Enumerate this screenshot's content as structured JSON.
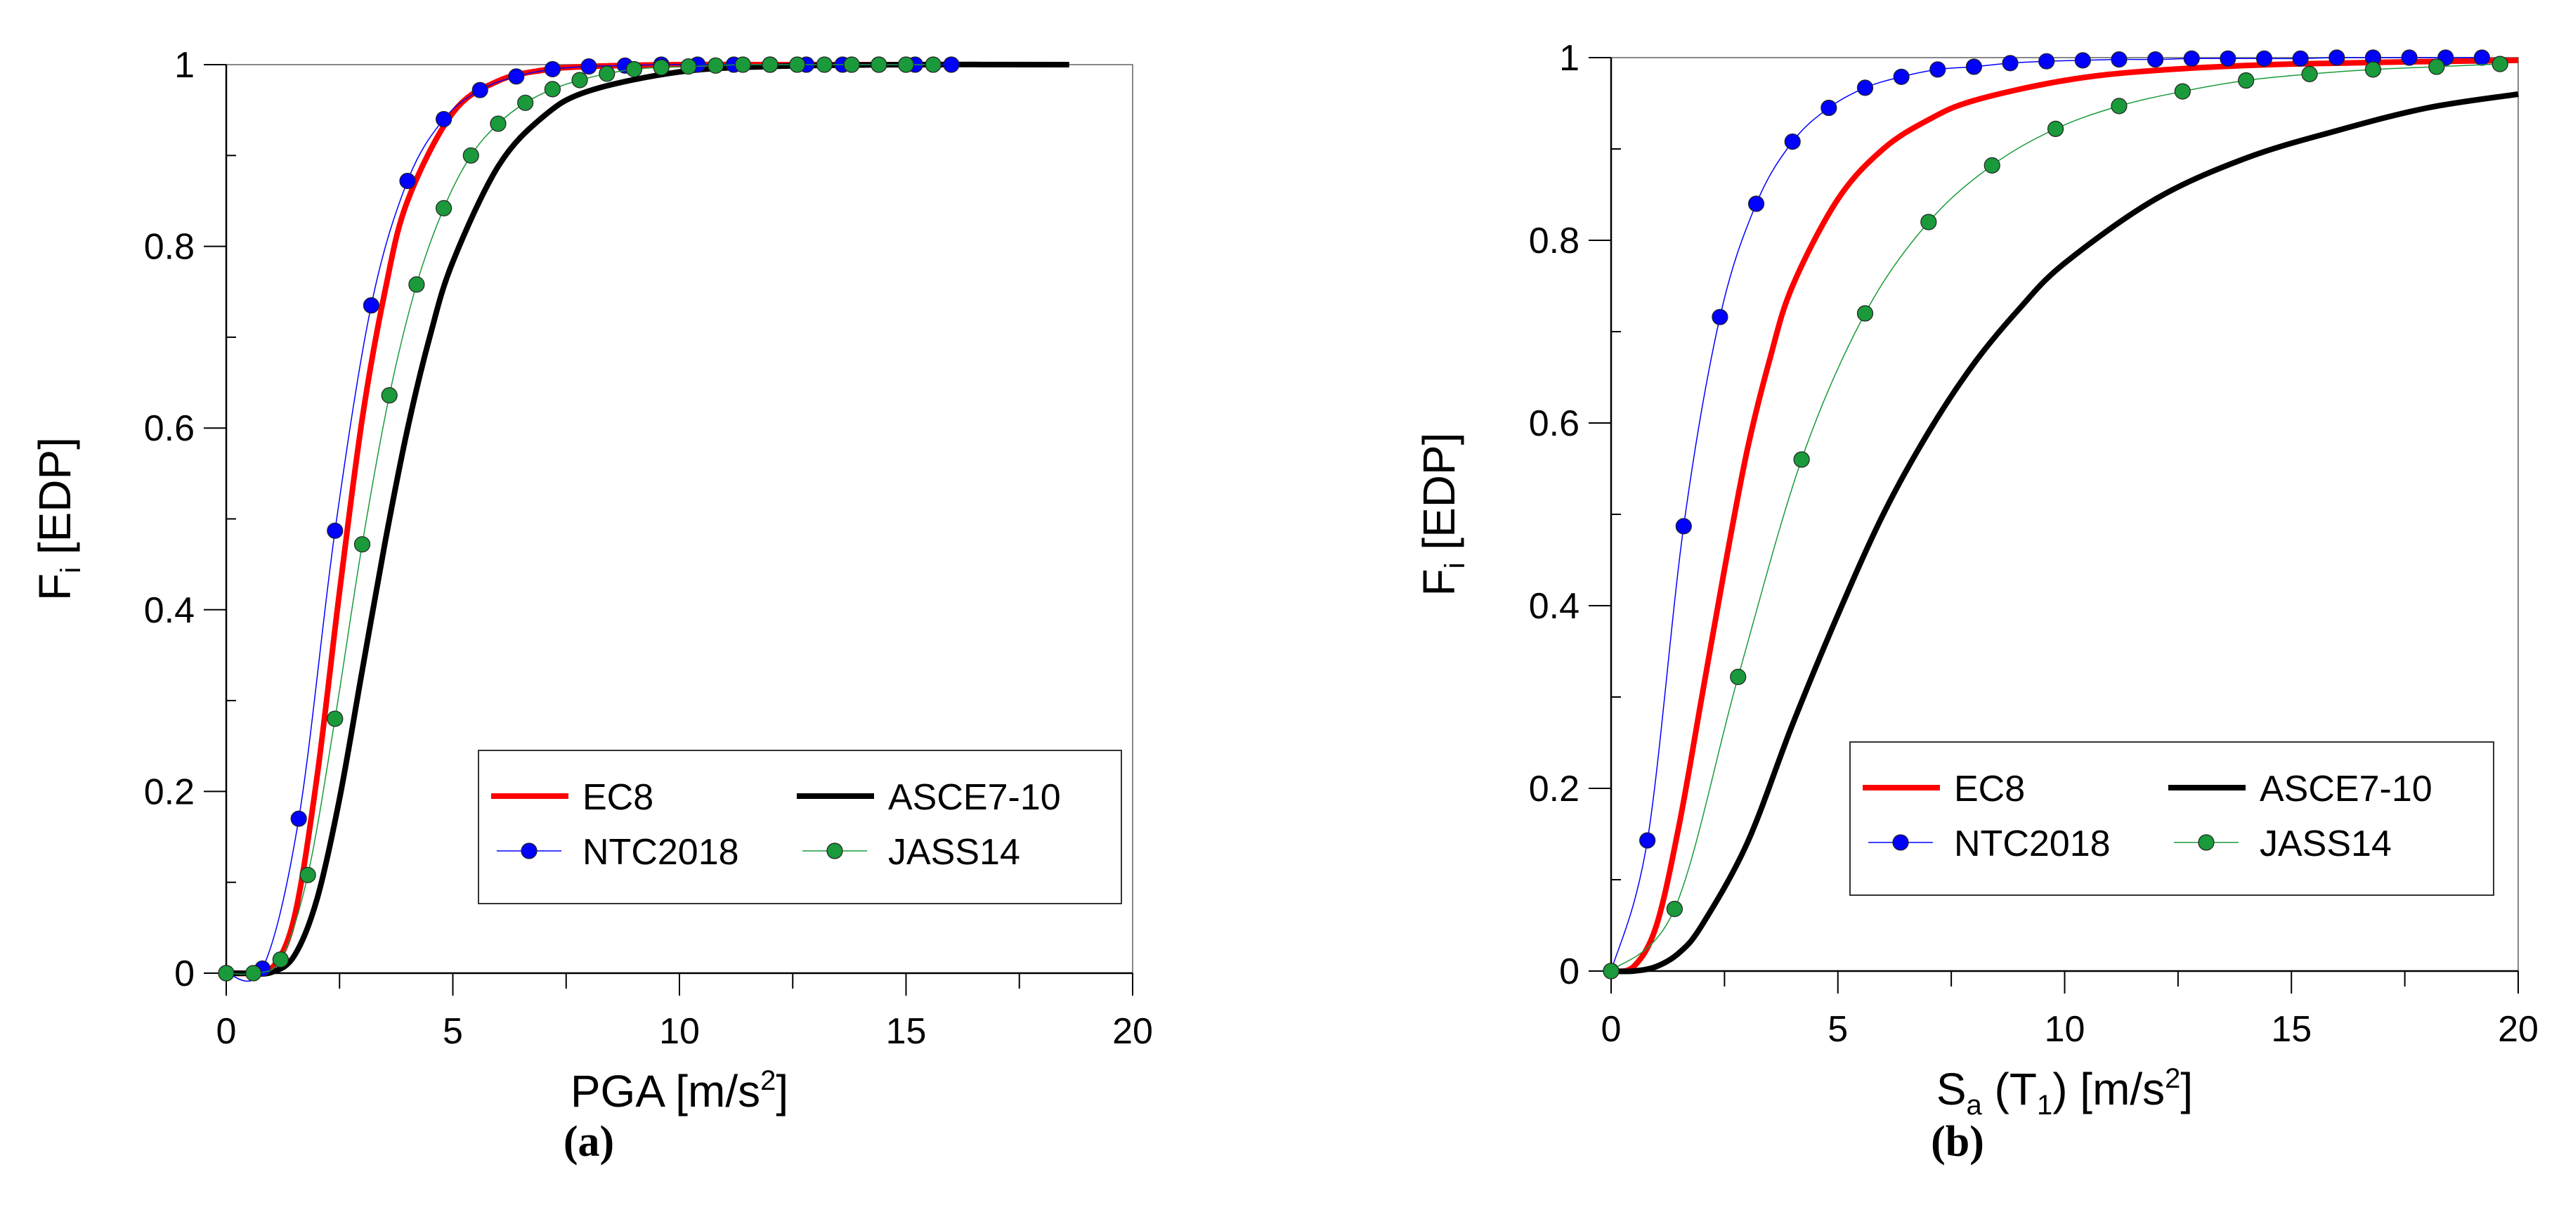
{
  "chart_data": [
    {
      "type": "line",
      "caption": "(a)",
      "xlabel": {
        "main": "PGA [m/s",
        "sup": "2",
        "end": "]"
      },
      "ylabel": {
        "main": "F",
        "sub": "i",
        "end": " [EDP]"
      },
      "xlim": [
        0,
        20
      ],
      "ylim": [
        0,
        1
      ],
      "xticks": [
        "0",
        "5",
        "10",
        "15",
        "20"
      ],
      "yticks": [
        "0",
        "0.2",
        "0.4",
        "0.6",
        "0.8",
        "1"
      ],
      "legend": {
        "placement": "bottom-right",
        "labels": [
          "EC8",
          "ASCE7-10",
          "NTC2018",
          "JASS14"
        ]
      },
      "series": [
        {
          "name": "EC8",
          "style": "line",
          "color": "#ff0000",
          "x": [
            0,
            0.5,
            1,
            1.5,
            2,
            2.5,
            3,
            3.5,
            4,
            5,
            6,
            7,
            8,
            10,
            12,
            16
          ],
          "y": [
            0,
            0,
            0.005,
            0.061,
            0.215,
            0.42,
            0.61,
            0.75,
            0.85,
            0.947,
            0.982,
            0.994,
            0.998,
            1,
            1,
            1
          ]
        },
        {
          "name": "ASCE7-10",
          "style": "line",
          "color": "#000000",
          "x": [
            0,
            0.5,
            1,
            1.5,
            2,
            2.5,
            3,
            3.5,
            4,
            4.5,
            5,
            6,
            7,
            8,
            10,
            12,
            15,
            18.6
          ],
          "y": [
            0,
            0,
            0.001,
            0.019,
            0.081,
            0.192,
            0.333,
            0.473,
            0.599,
            0.702,
            0.783,
            0.888,
            0.943,
            0.971,
            0.992,
            0.998,
            1,
            1
          ]
        },
        {
          "name": "NTC2018",
          "style": "marker-line",
          "color": "#0000ff",
          "x": [
            0,
            0.8,
            1.6,
            2.4,
            3.2,
            4.0,
            4.8,
            5.6,
            6.4,
            7.2,
            8.0,
            8.8,
            9.6,
            10.4,
            11.2,
            12.0,
            12.8,
            13.6,
            14.4,
            15.2,
            16.0
          ],
          "y": [
            0,
            0.005,
            0.17,
            0.487,
            0.735,
            0.872,
            0.94,
            0.972,
            0.987,
            0.995,
            0.998,
            0.999,
            1,
            1,
            1,
            1,
            1,
            1,
            1,
            1,
            1
          ]
        },
        {
          "name": "JASS14",
          "style": "marker-line",
          "color": "#1a9a3a",
          "x": [
            0,
            0.6,
            1.2,
            1.8,
            2.4,
            3.0,
            3.6,
            4.2,
            4.8,
            5.4,
            6.0,
            6.6,
            7.2,
            7.8,
            8.4,
            9.0,
            9.6,
            10.2,
            10.8,
            11.4,
            12.0,
            12.6,
            13.2,
            13.8,
            14.4,
            15.0,
            15.6
          ],
          "y": [
            0,
            0,
            0.015,
            0.108,
            0.28,
            0.472,
            0.636,
            0.758,
            0.842,
            0.9,
            0.935,
            0.958,
            0.973,
            0.983,
            0.99,
            0.995,
            0.997,
            0.998,
            0.999,
            1,
            1,
            1,
            1,
            1,
            1,
            1,
            1
          ]
        }
      ]
    },
    {
      "type": "line",
      "caption": "(b)",
      "xlabel": {
        "main": "S",
        "sub": "a",
        "mid": " (T",
        "sub2": "1",
        "end": ")   [m/s",
        "sup": "2",
        "end2": "]"
      },
      "ylabel": {
        "main": "F",
        "sub": "i",
        "end": " [EDP]"
      },
      "xlim": [
        0,
        20
      ],
      "ylim": [
        0,
        1
      ],
      "xticks": [
        "0",
        "5",
        "10",
        "15",
        "20"
      ],
      "yticks": [
        "0",
        "0.2",
        "0.4",
        "0.6",
        "0.8",
        "1"
      ],
      "legend": {
        "placement": "bottom-right",
        "labels": [
          "EC8",
          "ASCE7-10",
          "NTC2018",
          "JASS14"
        ]
      },
      "series": [
        {
          "name": "EC8",
          "style": "line",
          "color": "#ff0000",
          "x": [
            0,
            0.5,
            1,
            1.5,
            2,
            2.5,
            3,
            3.5,
            4,
            5,
            6,
            7,
            8,
            10,
            12,
            15,
            20
          ],
          "y": [
            0,
            0.005,
            0.05,
            0.16,
            0.3,
            0.44,
            0.57,
            0.67,
            0.75,
            0.845,
            0.9,
            0.932,
            0.953,
            0.975,
            0.986,
            0.993,
            0.997
          ]
        },
        {
          "name": "ASCE7-10",
          "style": "line",
          "color": "#000000",
          "x": [
            0,
            0.5,
            1,
            1.5,
            2,
            3,
            4,
            5,
            6,
            7,
            8,
            9,
            10,
            12,
            14,
            16,
            18,
            20
          ],
          "y": [
            0,
            0,
            0.005,
            0.02,
            0.05,
            0.14,
            0.27,
            0.39,
            0.5,
            0.59,
            0.665,
            0.725,
            0.775,
            0.845,
            0.89,
            0.92,
            0.945,
            0.96
          ]
        },
        {
          "name": "NTC2018",
          "style": "marker-line",
          "color": "#0000ff",
          "x": [
            0,
            0.8,
            1.6,
            2.4,
            3.2,
            4.0,
            4.8,
            5.6,
            6.4,
            7.2,
            8.0,
            8.8,
            9.6,
            10.4,
            11.2,
            12.0,
            12.8,
            13.6,
            14.4,
            15.2,
            16.0,
            16.8,
            17.6,
            18.4,
            19.2
          ],
          "y": [
            0,
            0.143,
            0.487,
            0.716,
            0.84,
            0.908,
            0.945,
            0.967,
            0.979,
            0.987,
            0.99,
            0.994,
            0.996,
            0.997,
            0.998,
            0.998,
            0.999,
            0.999,
            0.999,
            0.999,
            1,
            1,
            1,
            1,
            1
          ]
        },
        {
          "name": "JASS14",
          "style": "marker-line",
          "color": "#1a9a3a",
          "x": [
            0,
            1.4,
            2.8,
            4.2,
            5.6,
            7.0,
            8.4,
            9.8,
            11.2,
            12.6,
            14.0,
            15.4,
            16.8,
            18.2,
            19.6
          ],
          "y": [
            0,
            0.068,
            0.322,
            0.56,
            0.72,
            0.82,
            0.882,
            0.922,
            0.947,
            0.963,
            0.975,
            0.982,
            0.987,
            0.99,
            0.993
          ]
        }
      ]
    }
  ]
}
